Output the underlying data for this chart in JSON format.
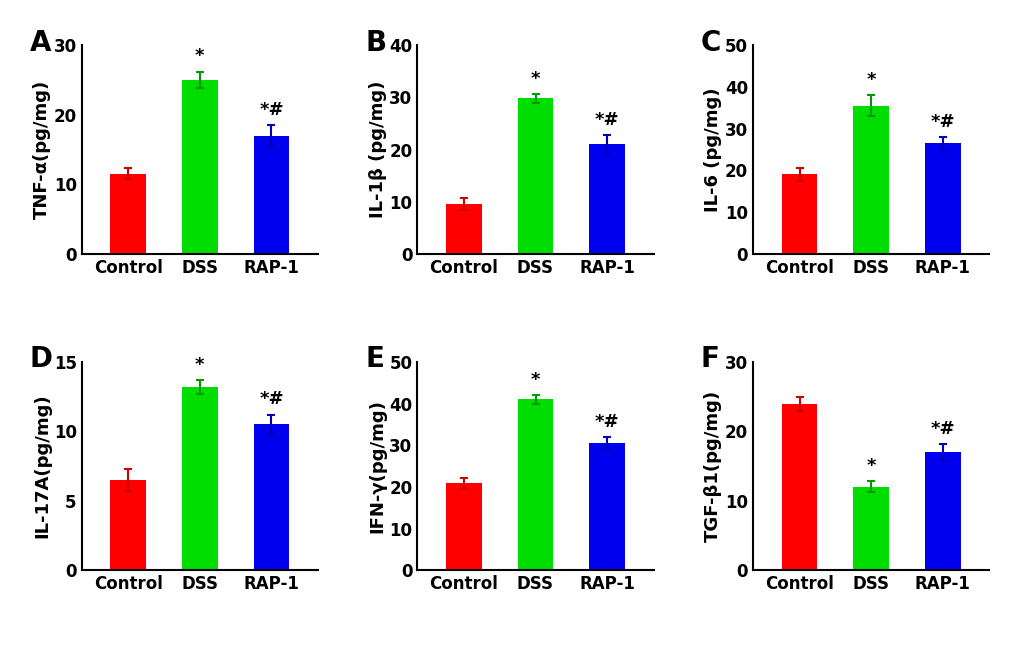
{
  "panels": [
    {
      "label": "A",
      "ylabel": "TNF-α(pg/mg)",
      "ylim": [
        0,
        30
      ],
      "yticks": [
        0,
        10,
        20,
        30
      ],
      "values": [
        11.5,
        25.0,
        17.0
      ],
      "errors": [
        0.8,
        1.2,
        1.5
      ],
      "sig_dss": "*",
      "sig_rap": "*#"
    },
    {
      "label": "B",
      "ylabel": "IL-1β (pg/mg)",
      "ylim": [
        0,
        40
      ],
      "yticks": [
        0,
        10,
        20,
        30,
        40
      ],
      "values": [
        9.5,
        29.8,
        21.0
      ],
      "errors": [
        1.1,
        0.9,
        1.8
      ],
      "sig_dss": "*",
      "sig_rap": "*#"
    },
    {
      "label": "C",
      "ylabel": "IL-6 (pg/mg)",
      "ylim": [
        0,
        50
      ],
      "yticks": [
        0,
        10,
        20,
        30,
        40,
        50
      ],
      "values": [
        19.0,
        35.5,
        26.5
      ],
      "errors": [
        1.5,
        2.5,
        1.5
      ],
      "sig_dss": "*",
      "sig_rap": "*#"
    },
    {
      "label": "D",
      "ylabel": "IL-17A(pg/mg)",
      "ylim": [
        0,
        15
      ],
      "yticks": [
        0,
        5,
        10,
        15
      ],
      "values": [
        6.5,
        13.2,
        10.5
      ],
      "errors": [
        0.8,
        0.5,
        0.7
      ],
      "sig_dss": "*",
      "sig_rap": "*#"
    },
    {
      "label": "E",
      "ylabel": "IFN-γ(pg/mg)",
      "ylim": [
        0,
        50
      ],
      "yticks": [
        0,
        10,
        20,
        30,
        40,
        50
      ],
      "values": [
        21.0,
        41.0,
        30.5
      ],
      "errors": [
        1.2,
        1.0,
        1.5
      ],
      "sig_dss": "*",
      "sig_rap": "*#"
    },
    {
      "label": "F",
      "ylabel": "TGF-β1(pg/mg)",
      "ylim": [
        0,
        30
      ],
      "yticks": [
        0,
        10,
        20,
        30
      ],
      "values": [
        24.0,
        12.0,
        17.0
      ],
      "errors": [
        1.0,
        0.8,
        1.2
      ],
      "sig_dss": "*",
      "sig_rap": "*#"
    }
  ],
  "categories": [
    "Control",
    "DSS",
    "RAP-1"
  ],
  "bar_colors": [
    "#ff0000",
    "#00dd00",
    "#0000ee"
  ],
  "error_colors": [
    "#cc0000",
    "#009900",
    "#0000bb"
  ],
  "background_color": "#ffffff",
  "ylabel_fontsize": 13,
  "tick_fontsize": 12,
  "sig_fontsize": 13,
  "panel_label_fontsize": 20,
  "bar_width": 0.5,
  "capsize": 3
}
